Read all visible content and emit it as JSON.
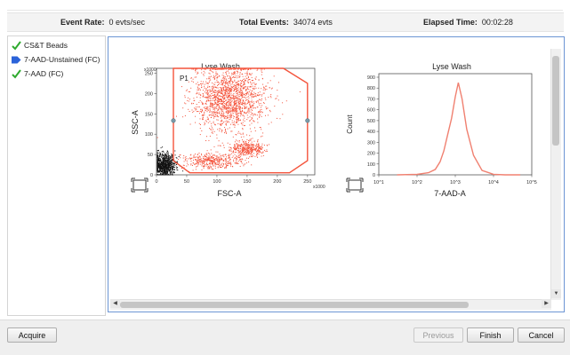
{
  "status": {
    "event_rate_label": "Event Rate:",
    "event_rate_value": "0 evts/sec",
    "total_events_label": "Total Events:",
    "total_events_value": "34074 evts",
    "elapsed_label": "Elapsed Time:",
    "elapsed_value": "00:02:28"
  },
  "tubes": [
    {
      "label": "CS&T Beads",
      "icon": "check-icon",
      "status": "done"
    },
    {
      "label": "7-AAD-Unstained (FC)",
      "icon": "arrow-marker-icon",
      "status": "current"
    },
    {
      "label": "7-AAD (FC)",
      "icon": "check-icon",
      "status": "done"
    }
  ],
  "plots": {
    "dot": {
      "title": "Lyse Wash",
      "xlabel": "FSC-A",
      "ylabel": "SSC-A",
      "x_multiplier": "x1000",
      "y_multiplier": "x1000",
      "gate_label": "P1",
      "x_ticks": [
        "0",
        "50",
        "100",
        "150",
        "200",
        "250"
      ],
      "y_ticks": [
        "0",
        "50",
        "100",
        "150",
        "200",
        "250"
      ]
    },
    "histogram": {
      "title": "Lyse Wash",
      "xlabel": "7-AAD-A",
      "ylabel": "Count",
      "y_ticks": [
        "0",
        "100",
        "200",
        "300",
        "400",
        "500",
        "600",
        "700",
        "800",
        "900"
      ],
      "x_ticks": [
        "10^1",
        "10^2",
        "10^3",
        "10^4",
        "10^5"
      ]
    }
  },
  "chart_data": [
    {
      "type": "scatter",
      "title": "Lyse Wash",
      "xlabel": "FSC-A",
      "ylabel": "SSC-A",
      "xlim": [
        0,
        262
      ],
      "ylim": [
        0,
        262
      ],
      "x_ticks": [
        0,
        50,
        100,
        150,
        200,
        250
      ],
      "y_ticks": [
        0,
        50,
        100,
        150,
        200,
        250
      ],
      "gate": {
        "name": "P1",
        "vertices": [
          [
            28,
            262
          ],
          [
            210,
            262
          ],
          [
            250,
            225
          ],
          [
            250,
            35
          ],
          [
            220,
            5
          ],
          [
            55,
            5
          ],
          [
            28,
            35
          ]
        ]
      },
      "populations": [
        {
          "name": "P1",
          "color": "#f4543c",
          "center": [
            120,
            190
          ],
          "spread": [
            30,
            40
          ],
          "count": 1700
        },
        {
          "name": "P1",
          "color": "#f4543c",
          "center": [
            150,
            65
          ],
          "spread": [
            14,
            9
          ],
          "count": 380
        },
        {
          "name": "P1",
          "color": "#f4543c",
          "center": [
            90,
            35
          ],
          "spread": [
            25,
            10
          ],
          "count": 420
        },
        {
          "name": "",
          "color": "#111111",
          "center": [
            12,
            25
          ],
          "spread": [
            9,
            15
          ],
          "count": 900
        }
      ]
    },
    {
      "type": "line",
      "title": "Lyse Wash",
      "xlabel": "7-AAD-A",
      "ylabel": "Count",
      "x_scale": "log",
      "xlim": [
        10,
        100000
      ],
      "ylim": [
        0,
        900
      ],
      "x": [
        30,
        100,
        200,
        300,
        400,
        500,
        650,
        800,
        1000,
        1200,
        1500,
        2000,
        3000,
        5000,
        10000,
        20000,
        50000
      ],
      "y": [
        0,
        5,
        20,
        50,
        120,
        220,
        390,
        520,
        720,
        850,
        700,
        420,
        180,
        40,
        5,
        0,
        0
      ],
      "color": "#f08070"
    }
  ],
  "footer": {
    "acquire_label": "Acquire",
    "previous_label": "Previous",
    "finish_label": "Finish",
    "cancel_label": "Cancel"
  }
}
